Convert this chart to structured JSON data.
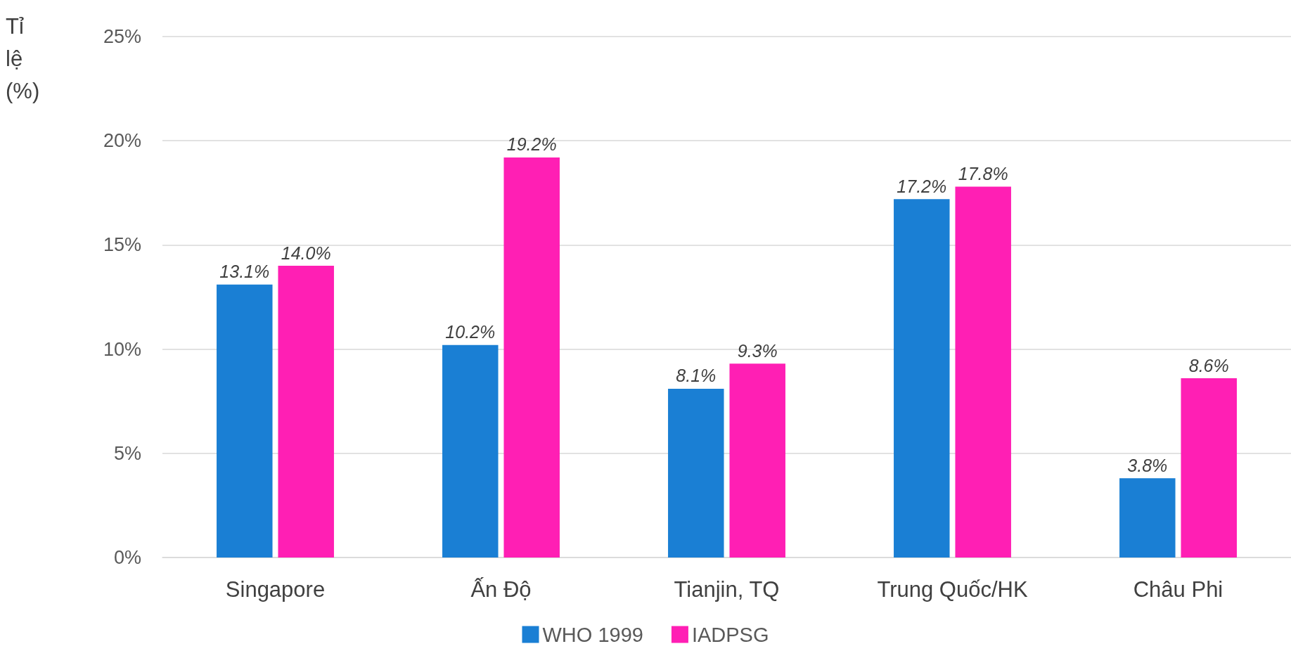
{
  "chart_data": {
    "type": "bar",
    "ylabel": "Tỉ lệ (%)",
    "categories": [
      "Singapore",
      "Ấn Độ",
      "Tianjin, TQ",
      "Trung Quốc/HK",
      "Châu Phi"
    ],
    "series": [
      {
        "name": "WHO 1999",
        "color": "#1a7fd4",
        "values": [
          13.1,
          10.2,
          8.1,
          17.2,
          3.8
        ],
        "value_labels": [
          "13.1%",
          "10.2%",
          "8.1%",
          "17.2%",
          "3.8%"
        ]
      },
      {
        "name": "IADPSG",
        "color": "#ff1fb4",
        "values": [
          14.0,
          19.2,
          9.3,
          17.8,
          8.6
        ],
        "value_labels": [
          "14.0%",
          "19.2%",
          "9.3%",
          "17.8%",
          "8.6%"
        ]
      }
    ],
    "ylim": [
      0,
      25
    ],
    "yticks": [
      {
        "value": 0,
        "label": "0%"
      },
      {
        "value": 5,
        "label": "5%"
      },
      {
        "value": 10,
        "label": "10%"
      },
      {
        "value": 15,
        "label": "15%"
      },
      {
        "value": 20,
        "label": "20%"
      },
      {
        "value": 25,
        "label": "25%"
      }
    ],
    "grid": "y",
    "legend": "bottom"
  }
}
